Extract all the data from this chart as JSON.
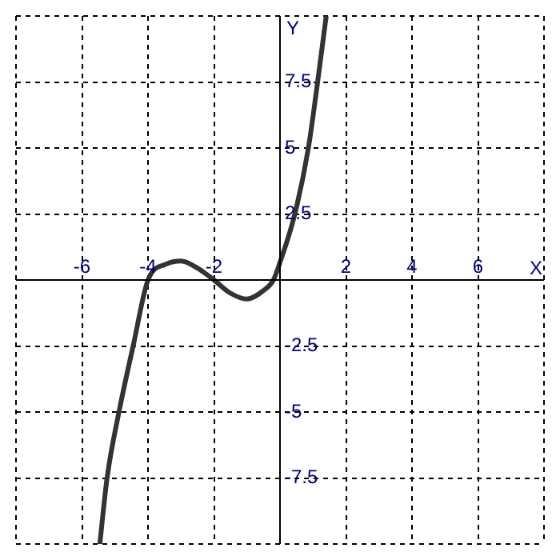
{
  "chart_data": {
    "type": "line",
    "xlabel": "X",
    "ylabel": "Y",
    "x": [
      -5.46,
      -5.24,
      -4.88,
      -4.45,
      -4,
      -3.45,
      -3,
      -2.5,
      -2,
      -1.5,
      -1,
      -0.5,
      -0.2,
      0,
      0.45,
      0.86,
      1.14,
      1.4
    ],
    "series": [
      {
        "color": "#333333",
        "values": [
          -10,
          -7.5,
          -5,
          -2.5,
          0,
          0.6,
          0.72,
          0.45,
          0,
          -0.5,
          -0.72,
          -0.4,
          0,
          0.67,
          2.5,
          5,
          7.5,
          10
        ]
      }
    ],
    "xlim": [
      -8,
      8
    ],
    "ylim": [
      -10,
      10
    ],
    "xticks": [
      {
        "value": -8,
        "label": null
      },
      -6,
      -4,
      -2,
      {
        "value": 0,
        "label": null
      },
      2,
      4,
      6,
      {
        "value": 8,
        "label": null
      }
    ],
    "yticks": [
      {
        "value": -10,
        "label": null
      },
      -7.5,
      -5,
      -2.5,
      {
        "value": 0,
        "label": null
      },
      2.5,
      5,
      7.5,
      {
        "value": 10,
        "label": null
      }
    ],
    "grid": true,
    "legend": false,
    "marker": "none",
    "line_style": "solid"
  }
}
